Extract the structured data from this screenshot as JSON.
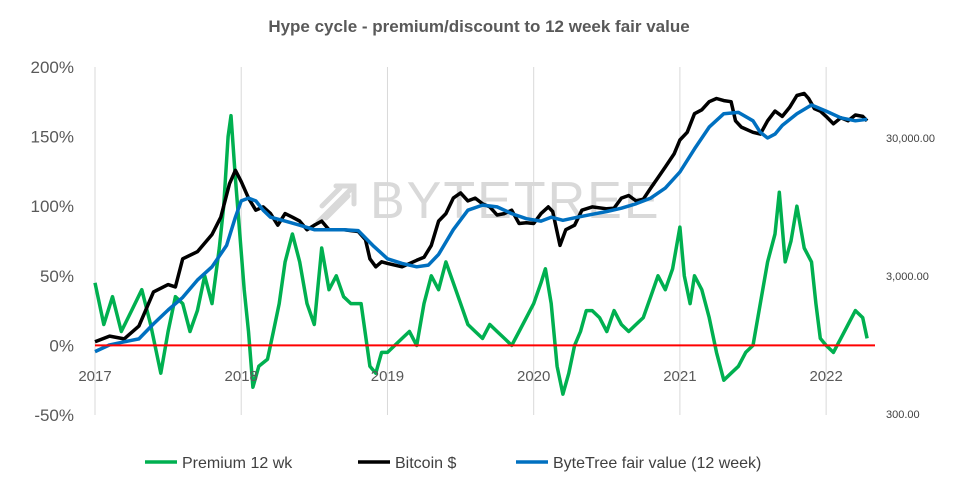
{
  "chart_data": {
    "type": "line",
    "title": "Hype cycle - premium/discount to 12 week fair value",
    "watermark": "BYTETREE",
    "y_left": {
      "ticks": [
        "200%",
        "150%",
        "100%",
        "50%",
        "0%",
        "-50%"
      ],
      "tick_values": [
        200,
        150,
        100,
        50,
        0,
        -50
      ],
      "ylim": [
        -50,
        200
      ]
    },
    "y_right": {
      "ticks": [
        "30,000.00",
        "3,000.00",
        "300.00"
      ],
      "tick_values": [
        30000,
        3000,
        300
      ],
      "scale": "log"
    },
    "x": {
      "ticks": [
        "2017",
        "2018",
        "2019",
        "2020",
        "2021",
        "2022"
      ],
      "tick_values": [
        2017,
        2018,
        2019,
        2020,
        2021,
        2022
      ],
      "xlim": [
        2017.0,
        2022.3
      ]
    },
    "series": [
      {
        "name": "Premium 12 wk",
        "axis": "left",
        "color": "#00b050",
        "points": [
          [
            2017.0,
            45
          ],
          [
            2017.06,
            15
          ],
          [
            2017.12,
            35
          ],
          [
            2017.18,
            10
          ],
          [
            2017.25,
            25
          ],
          [
            2017.32,
            40
          ],
          [
            2017.38,
            15
          ],
          [
            2017.45,
            -20
          ],
          [
            2017.5,
            10
          ],
          [
            2017.55,
            35
          ],
          [
            2017.6,
            30
          ],
          [
            2017.65,
            10
          ],
          [
            2017.7,
            25
          ],
          [
            2017.75,
            50
          ],
          [
            2017.8,
            30
          ],
          [
            2017.85,
            70
          ],
          [
            2017.88,
            100
          ],
          [
            2017.91,
            150
          ],
          [
            2017.93,
            165
          ],
          [
            2017.96,
            120
          ],
          [
            2017.99,
            80
          ],
          [
            2018.02,
            40
          ],
          [
            2018.05,
            10
          ],
          [
            2018.08,
            -30
          ],
          [
            2018.12,
            -15
          ],
          [
            2018.18,
            -10
          ],
          [
            2018.22,
            10
          ],
          [
            2018.26,
            30
          ],
          [
            2018.3,
            60
          ],
          [
            2018.35,
            80
          ],
          [
            2018.4,
            60
          ],
          [
            2018.45,
            30
          ],
          [
            2018.5,
            15
          ],
          [
            2018.55,
            70
          ],
          [
            2018.6,
            40
          ],
          [
            2018.65,
            50
          ],
          [
            2018.7,
            35
          ],
          [
            2018.75,
            30
          ],
          [
            2018.82,
            30
          ],
          [
            2018.88,
            -15
          ],
          [
            2018.92,
            -20
          ],
          [
            2018.96,
            -5
          ],
          [
            2019.0,
            -5
          ],
          [
            2019.05,
            0
          ],
          [
            2019.1,
            5
          ],
          [
            2019.15,
            10
          ],
          [
            2019.2,
            0
          ],
          [
            2019.25,
            30
          ],
          [
            2019.3,
            50
          ],
          [
            2019.35,
            40
          ],
          [
            2019.4,
            60
          ],
          [
            2019.45,
            45
          ],
          [
            2019.5,
            30
          ],
          [
            2019.55,
            15
          ],
          [
            2019.6,
            10
          ],
          [
            2019.65,
            5
          ],
          [
            2019.7,
            15
          ],
          [
            2019.75,
            10
          ],
          [
            2019.8,
            5
          ],
          [
            2019.85,
            0
          ],
          [
            2019.9,
            10
          ],
          [
            2019.95,
            20
          ],
          [
            2020.0,
            30
          ],
          [
            2020.05,
            45
          ],
          [
            2020.08,
            55
          ],
          [
            2020.12,
            30
          ],
          [
            2020.16,
            -15
          ],
          [
            2020.2,
            -35
          ],
          [
            2020.24,
            -20
          ],
          [
            2020.28,
            0
          ],
          [
            2020.32,
            10
          ],
          [
            2020.36,
            25
          ],
          [
            2020.4,
            25
          ],
          [
            2020.45,
            20
          ],
          [
            2020.5,
            10
          ],
          [
            2020.55,
            25
          ],
          [
            2020.6,
            15
          ],
          [
            2020.65,
            10
          ],
          [
            2020.7,
            15
          ],
          [
            2020.75,
            20
          ],
          [
            2020.8,
            35
          ],
          [
            2020.85,
            50
          ],
          [
            2020.9,
            40
          ],
          [
            2020.95,
            55
          ],
          [
            2021.0,
            85
          ],
          [
            2021.03,
            50
          ],
          [
            2021.07,
            30
          ],
          [
            2021.1,
            50
          ],
          [
            2021.15,
            40
          ],
          [
            2021.2,
            20
          ],
          [
            2021.25,
            -5
          ],
          [
            2021.3,
            -25
          ],
          [
            2021.35,
            -20
          ],
          [
            2021.4,
            -15
          ],
          [
            2021.45,
            -5
          ],
          [
            2021.5,
            0
          ],
          [
            2021.55,
            30
          ],
          [
            2021.6,
            60
          ],
          [
            2021.65,
            80
          ],
          [
            2021.68,
            110
          ],
          [
            2021.72,
            60
          ],
          [
            2021.76,
            75
          ],
          [
            2021.8,
            100
          ],
          [
            2021.85,
            70
          ],
          [
            2021.9,
            60
          ],
          [
            2021.93,
            30
          ],
          [
            2021.96,
            5
          ],
          [
            2022.0,
            0
          ],
          [
            2022.05,
            -5
          ],
          [
            2022.1,
            5
          ],
          [
            2022.15,
            15
          ],
          [
            2022.2,
            25
          ],
          [
            2022.25,
            20
          ],
          [
            2022.28,
            5
          ]
        ]
      },
      {
        "name": "Bitcoin $",
        "axis": "right",
        "color": "#000000",
        "points": [
          [
            2017.0,
            1000
          ],
          [
            2017.1,
            1100
          ],
          [
            2017.2,
            1050
          ],
          [
            2017.3,
            1300
          ],
          [
            2017.4,
            2300
          ],
          [
            2017.5,
            2600
          ],
          [
            2017.55,
            2500
          ],
          [
            2017.6,
            4000
          ],
          [
            2017.7,
            4500
          ],
          [
            2017.8,
            6000
          ],
          [
            2017.86,
            8000
          ],
          [
            2017.92,
            14000
          ],
          [
            2017.96,
            17500
          ],
          [
            2018.0,
            14500
          ],
          [
            2018.05,
            11000
          ],
          [
            2018.1,
            9000
          ],
          [
            2018.15,
            9500
          ],
          [
            2018.2,
            8500
          ],
          [
            2018.25,
            7000
          ],
          [
            2018.3,
            8500
          ],
          [
            2018.35,
            8000
          ],
          [
            2018.4,
            7500
          ],
          [
            2018.45,
            6500
          ],
          [
            2018.5,
            7000
          ],
          [
            2018.55,
            7500
          ],
          [
            2018.6,
            6500
          ],
          [
            2018.65,
            6500
          ],
          [
            2018.7,
            6500
          ],
          [
            2018.75,
            6400
          ],
          [
            2018.8,
            6300
          ],
          [
            2018.85,
            5500
          ],
          [
            2018.88,
            4000
          ],
          [
            2018.92,
            3500
          ],
          [
            2018.96,
            3800
          ],
          [
            2019.0,
            3700
          ],
          [
            2019.1,
            3500
          ],
          [
            2019.2,
            3900
          ],
          [
            2019.25,
            4100
          ],
          [
            2019.3,
            5000
          ],
          [
            2019.35,
            7500
          ],
          [
            2019.4,
            8500
          ],
          [
            2019.45,
            11000
          ],
          [
            2019.5,
            12000
          ],
          [
            2019.55,
            10500
          ],
          [
            2019.6,
            11000
          ],
          [
            2019.65,
            10000
          ],
          [
            2019.7,
            9500
          ],
          [
            2019.75,
            8300
          ],
          [
            2019.8,
            8500
          ],
          [
            2019.85,
            9000
          ],
          [
            2019.9,
            7200
          ],
          [
            2019.95,
            7300
          ],
          [
            2020.0,
            7200
          ],
          [
            2020.05,
            8500
          ],
          [
            2020.1,
            9500
          ],
          [
            2020.13,
            8800
          ],
          [
            2020.18,
            5000
          ],
          [
            2020.22,
            6500
          ],
          [
            2020.28,
            7000
          ],
          [
            2020.33,
            9000
          ],
          [
            2020.4,
            9500
          ],
          [
            2020.5,
            9200
          ],
          [
            2020.55,
            9300
          ],
          [
            2020.6,
            11000
          ],
          [
            2020.65,
            11500
          ],
          [
            2020.7,
            10500
          ],
          [
            2020.75,
            10800
          ],
          [
            2020.8,
            13000
          ],
          [
            2020.85,
            15500
          ],
          [
            2020.9,
            18500
          ],
          [
            2020.96,
            23000
          ],
          [
            2021.0,
            29000
          ],
          [
            2021.05,
            33000
          ],
          [
            2021.1,
            45000
          ],
          [
            2021.15,
            48000
          ],
          [
            2021.2,
            55000
          ],
          [
            2021.25,
            58000
          ],
          [
            2021.3,
            56000
          ],
          [
            2021.35,
            55000
          ],
          [
            2021.38,
            40000
          ],
          [
            2021.42,
            36000
          ],
          [
            2021.5,
            33000
          ],
          [
            2021.55,
            32000
          ],
          [
            2021.6,
            40000
          ],
          [
            2021.65,
            47000
          ],
          [
            2021.7,
            43000
          ],
          [
            2021.75,
            50000
          ],
          [
            2021.8,
            61000
          ],
          [
            2021.85,
            63000
          ],
          [
            2021.88,
            58000
          ],
          [
            2021.92,
            49000
          ],
          [
            2021.96,
            47000
          ],
          [
            2022.0,
            43000
          ],
          [
            2022.05,
            38000
          ],
          [
            2022.1,
            42000
          ],
          [
            2022.15,
            40000
          ],
          [
            2022.2,
            44000
          ],
          [
            2022.25,
            43000
          ],
          [
            2022.28,
            40000
          ]
        ]
      },
      {
        "name": "ByteTree fair value (12 week)",
        "axis": "right",
        "color": "#0070c0",
        "points": [
          [
            2017.0,
            850
          ],
          [
            2017.1,
            950
          ],
          [
            2017.2,
            1000
          ],
          [
            2017.3,
            1050
          ],
          [
            2017.4,
            1350
          ],
          [
            2017.5,
            1700
          ],
          [
            2017.6,
            2100
          ],
          [
            2017.7,
            2800
          ],
          [
            2017.8,
            3500
          ],
          [
            2017.9,
            5000
          ],
          [
            2017.96,
            8000
          ],
          [
            2018.0,
            10500
          ],
          [
            2018.05,
            11000
          ],
          [
            2018.1,
            10500
          ],
          [
            2018.15,
            9000
          ],
          [
            2018.2,
            8000
          ],
          [
            2018.3,
            7500
          ],
          [
            2018.4,
            7000
          ],
          [
            2018.5,
            6500
          ],
          [
            2018.6,
            6500
          ],
          [
            2018.7,
            6500
          ],
          [
            2018.8,
            6400
          ],
          [
            2018.9,
            5000
          ],
          [
            2019.0,
            4000
          ],
          [
            2019.1,
            3700
          ],
          [
            2019.2,
            3500
          ],
          [
            2019.28,
            3600
          ],
          [
            2019.35,
            4300
          ],
          [
            2019.45,
            6500
          ],
          [
            2019.55,
            9000
          ],
          [
            2019.65,
            9800
          ],
          [
            2019.75,
            9500
          ],
          [
            2019.85,
            8500
          ],
          [
            2019.95,
            7800
          ],
          [
            2020.05,
            7500
          ],
          [
            2020.12,
            8000
          ],
          [
            2020.2,
            7600
          ],
          [
            2020.3,
            8000
          ],
          [
            2020.4,
            8400
          ],
          [
            2020.5,
            8800
          ],
          [
            2020.6,
            9300
          ],
          [
            2020.7,
            10000
          ],
          [
            2020.8,
            11000
          ],
          [
            2020.9,
            13000
          ],
          [
            2021.0,
            17000
          ],
          [
            2021.1,
            25000
          ],
          [
            2021.2,
            36000
          ],
          [
            2021.3,
            45000
          ],
          [
            2021.4,
            46000
          ],
          [
            2021.5,
            40000
          ],
          [
            2021.55,
            33000
          ],
          [
            2021.6,
            30000
          ],
          [
            2021.65,
            32000
          ],
          [
            2021.7,
            37000
          ],
          [
            2021.8,
            45000
          ],
          [
            2021.9,
            52000
          ],
          [
            2022.0,
            47000
          ],
          [
            2022.1,
            42000
          ],
          [
            2022.2,
            40000
          ],
          [
            2022.28,
            41000
          ]
        ]
      }
    ],
    "reference_line": {
      "value": 0,
      "color": "#ff0000"
    },
    "legend_position": "bottom"
  }
}
